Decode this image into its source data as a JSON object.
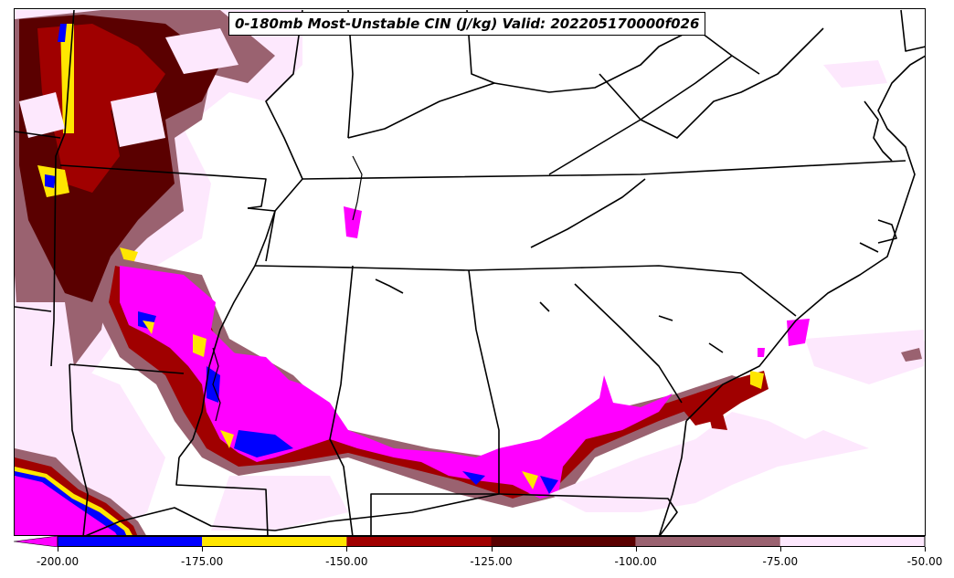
{
  "title": "0-180mb Most-Unstable CIN (J/kg) Valid: 202205170000f026",
  "map": {
    "variable": "Most-Unstable CIN",
    "layer": "0-180mb",
    "units": "J/kg",
    "region": "Southeastern United States"
  },
  "colorbar": {
    "ticks": [
      "-200.00",
      "-175.00",
      "-150.00",
      "-125.00",
      "-100.00",
      "-75.00",
      "-50.00"
    ],
    "bins": [
      {
        "range": "< -200",
        "color": "#ff00ff"
      },
      {
        "range": "-200 to -175",
        "color": "#0000ff"
      },
      {
        "range": "-175 to -150",
        "color": "#ffe600"
      },
      {
        "range": "-150 to -125",
        "color": "#a00000"
      },
      {
        "range": "-125 to -100",
        "color": "#5a0000"
      },
      {
        "range": "-100 to -75",
        "color": "#9a6270"
      },
      {
        "range": "-75 to -50",
        "color": "#fde8fd"
      }
    ],
    "extend_min": true
  }
}
